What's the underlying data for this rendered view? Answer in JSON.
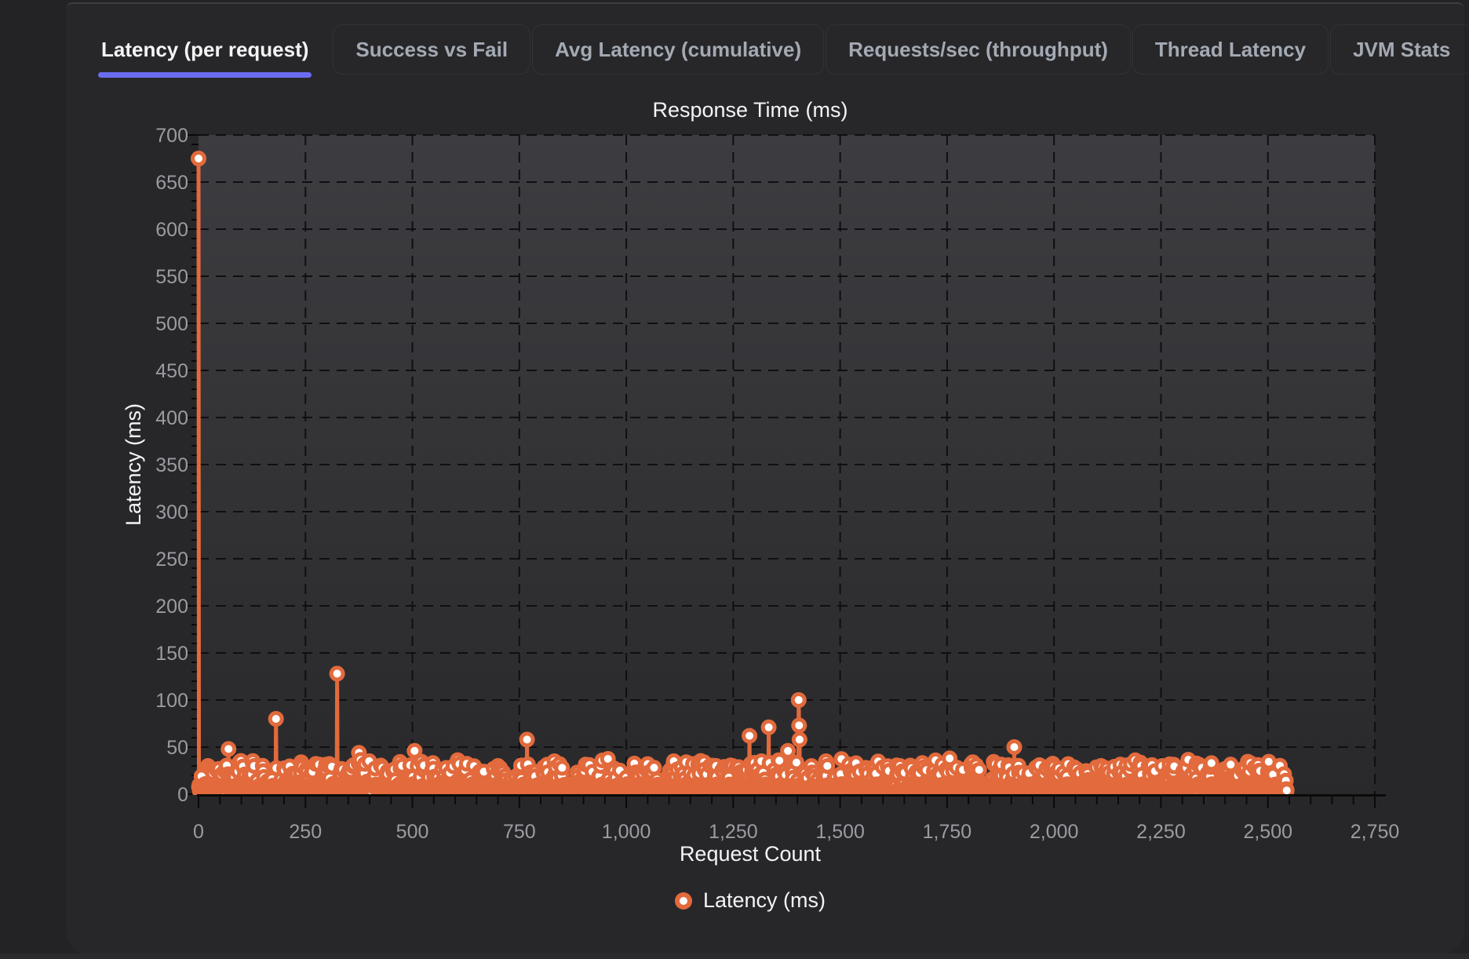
{
  "tabs": {
    "items": [
      {
        "label": "Latency (per request)",
        "active": true
      },
      {
        "label": "Success vs Fail",
        "active": false
      },
      {
        "label": "Avg Latency (cumulative)",
        "active": false
      },
      {
        "label": "Requests/sec (throughput)",
        "active": false
      },
      {
        "label": "Thread Latency",
        "active": false
      },
      {
        "label": "JVM Stats",
        "active": false
      }
    ]
  },
  "colors": {
    "page_bg": "#232325",
    "panel_bg": "#27272a",
    "panel_border": "#3d3d44",
    "footer_bg": "#2b2b2d",
    "plot_bg_top": "#3d3d41",
    "plot_bg_bottom": "#29292b",
    "grid": "#0f0f11",
    "axis": "#0a0a0a",
    "tick_label": "#9b9ba1",
    "text": "#f4f4f5",
    "tab_inactive": "#a4aab3",
    "tab_underline": "#6b6cf1",
    "accent_orange": "#e26a3c",
    "marker_fill": "#ffffff"
  },
  "chart_data": {
    "type": "line",
    "title": "Response Time (ms)",
    "xlabel": "Request Count",
    "ylabel": "Latency (ms)",
    "legend": [
      {
        "label": "Latency (ms)",
        "color": "#e26a3c"
      }
    ],
    "legend_position": "bottom-center",
    "grid": "dashed",
    "xlim": [
      0,
      2750
    ],
    "ylim": [
      0,
      700
    ],
    "x_ticks": [
      {
        "v": 0,
        "label": "0"
      },
      {
        "v": 250,
        "label": "250"
      },
      {
        "v": 500,
        "label": "500"
      },
      {
        "v": 750,
        "label": "750"
      },
      {
        "v": 1000,
        "label": "1,000"
      },
      {
        "v": 1250,
        "label": "1,250"
      },
      {
        "v": 1500,
        "label": "1,500"
      },
      {
        "v": 1750,
        "label": "1,750"
      },
      {
        "v": 2000,
        "label": "2,000"
      },
      {
        "v": 2250,
        "label": "2,250"
      },
      {
        "v": 2500,
        "label": "2,500"
      },
      {
        "v": 2750,
        "label": "2,750"
      }
    ],
    "y_ticks": [
      {
        "v": 0,
        "label": "0"
      },
      {
        "v": 50,
        "label": "50"
      },
      {
        "v": 100,
        "label": "100"
      },
      {
        "v": 150,
        "label": "150"
      },
      {
        "v": 200,
        "label": "200"
      },
      {
        "v": 250,
        "label": "250"
      },
      {
        "v": 300,
        "label": "300"
      },
      {
        "v": 350,
        "label": "350"
      },
      {
        "v": 400,
        "label": "400"
      },
      {
        "v": 450,
        "label": "450"
      },
      {
        "v": 500,
        "label": "500"
      },
      {
        "v": 550,
        "label": "550"
      },
      {
        "v": 600,
        "label": "600"
      },
      {
        "v": 650,
        "label": "650"
      },
      {
        "v": 700,
        "label": "700"
      }
    ],
    "minor_tick_step_x": 50,
    "minor_tick_step_y": 10,
    "total_points": 2545,
    "baseline_range_ms": [
      3,
      38
    ],
    "baseline": {
      "seed": 11,
      "min": 3,
      "span": 8,
      "bump_chance": 0.17,
      "bump_min": 7,
      "bump_span": 20
    },
    "spikes": [
      [
        0,
        675
      ],
      [
        22,
        30
      ],
      [
        70,
        48
      ],
      [
        96,
        34
      ],
      [
        130,
        30
      ],
      [
        181,
        80
      ],
      [
        240,
        34
      ],
      [
        324,
        128
      ],
      [
        375,
        44
      ],
      [
        430,
        28
      ],
      [
        505,
        46
      ],
      [
        610,
        32
      ],
      [
        700,
        30
      ],
      [
        768,
        58
      ],
      [
        850,
        28
      ],
      [
        940,
        30
      ],
      [
        1050,
        32
      ],
      [
        1140,
        34
      ],
      [
        1210,
        30
      ],
      [
        1288,
        62
      ],
      [
        1333,
        71
      ],
      [
        1356,
        36
      ],
      [
        1378,
        46
      ],
      [
        1403,
        100
      ],
      [
        1404,
        73
      ],
      [
        1405,
        58
      ],
      [
        1470,
        30
      ],
      [
        1560,
        28
      ],
      [
        1640,
        30
      ],
      [
        1756,
        38
      ],
      [
        1810,
        34
      ],
      [
        1860,
        32
      ],
      [
        1907,
        50
      ],
      [
        1990,
        30
      ],
      [
        2033,
        32
      ],
      [
        2110,
        30
      ],
      [
        2180,
        32
      ],
      [
        2253,
        30
      ],
      [
        2310,
        28
      ],
      [
        2368,
        33
      ],
      [
        2447,
        28
      ],
      [
        2500,
        24
      ],
      [
        2544,
        4
      ]
    ]
  }
}
